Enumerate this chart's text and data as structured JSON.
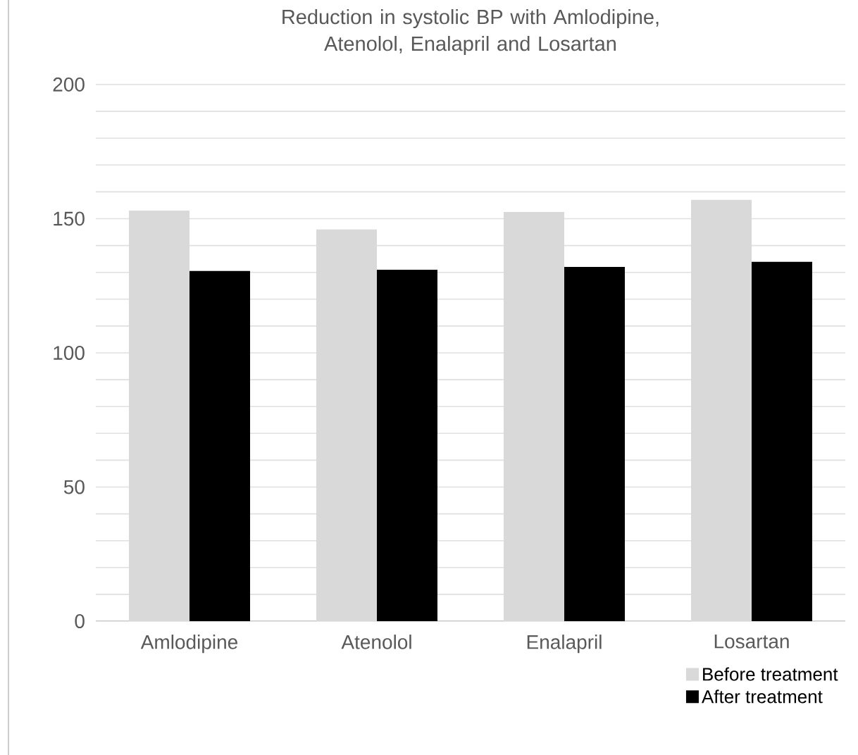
{
  "chart_data": {
    "type": "bar",
    "title": "Reduction in systolic BP with Amlodipine, Atenolol, Enalapril and Losartan",
    "categories": [
      "Amlodipine",
      "Atenolol",
      "Enalapril",
      "Losartan"
    ],
    "series": [
      {
        "name": "Before treatment",
        "color": "#d9d9d9",
        "values": [
          153,
          146,
          152.5,
          157
        ]
      },
      {
        "name": "After treatment",
        "color": "#000000",
        "values": [
          130.5,
          131,
          132,
          134
        ]
      }
    ],
    "ylim": [
      0,
      200
    ],
    "yticks": [
      0,
      {
        "value": 10,
        "label": null
      },
      {
        "value": 20,
        "label": null
      },
      {
        "value": 30,
        "label": null
      },
      {
        "value": 40,
        "label": null
      },
      50,
      {
        "value": 60,
        "label": null
      },
      {
        "value": 70,
        "label": null
      },
      {
        "value": 80,
        "label": null
      },
      {
        "value": 90,
        "label": null
      },
      100,
      {
        "value": 110,
        "label": null
      },
      {
        "value": 120,
        "label": null
      },
      {
        "value": 130,
        "label": null
      },
      {
        "value": 140,
        "label": null
      },
      150,
      {
        "value": 160,
        "label": null
      },
      {
        "value": 170,
        "label": null
      },
      {
        "value": 180,
        "label": null
      },
      {
        "value": 190,
        "label": null
      },
      200
    ],
    "grid": "y",
    "legend": "bottom right"
  }
}
